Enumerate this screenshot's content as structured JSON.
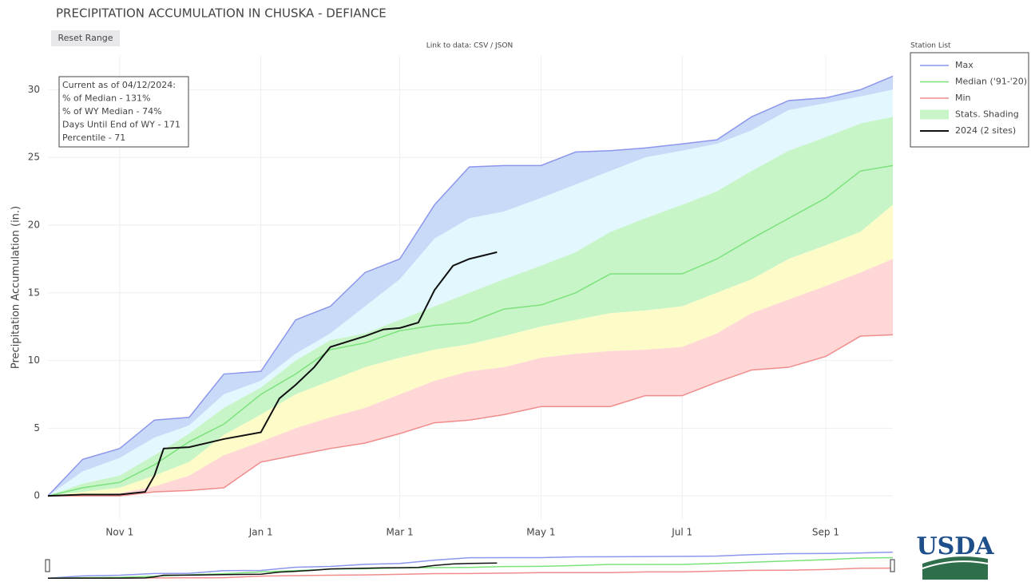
{
  "chart_data": {
    "type": "line",
    "title": "PRECIPITATION ACCUMULATION IN CHUSKA - DEFIANCE",
    "y_label": "Precipitation Accumulation (in.)",
    "reset_button": "Reset Range",
    "data_link": "Link to data: CSV / JSON",
    "legend_title": "Station List",
    "logo": "USDA",
    "info_box": [
      "Current as of 04/12/2024:",
      "% of Median - 131%",
      "% of WY Median - 74%",
      "Days Until End of WY - 171",
      "Percentile - 71"
    ],
    "xlim": [
      0,
      365
    ],
    "xticks": [
      {
        "value": 31,
        "label": "Nov 1"
      },
      {
        "value": 92,
        "label": "Jan 1"
      },
      {
        "value": 152,
        "label": "Mar 1"
      },
      {
        "value": 213,
        "label": "May 1"
      },
      {
        "value": 274,
        "label": "Jul 1"
      },
      {
        "value": 336,
        "label": "Sep 1"
      }
    ],
    "ylim": [
      -1.7,
      32.5
    ],
    "yticks": [
      0,
      5,
      10,
      15,
      20,
      25,
      30
    ],
    "grid": true,
    "legend": "right",
    "x": [
      0,
      15,
      31,
      46,
      61,
      76,
      92,
      107,
      122,
      137,
      152,
      167,
      182,
      197,
      213,
      228,
      243,
      258,
      274,
      289,
      304,
      320,
      336,
      351,
      365
    ],
    "series": [
      {
        "name": "Max",
        "color": "#8c96ec",
        "values": [
          0,
          2.7,
          3.5,
          5.6,
          5.8,
          9,
          9.2,
          13,
          14,
          16.5,
          17.5,
          21.5,
          24.3,
          24.4,
          24.4,
          25.4,
          25.5,
          25.7,
          26,
          26.3,
          28,
          29.2,
          29.4,
          30,
          31
        ]
      },
      {
        "name": "Median ('91-'20)",
        "color": "#7ce27c",
        "values": [
          0,
          0.6,
          1,
          2.3,
          4,
          5.3,
          7.5,
          9,
          10.8,
          11.3,
          12.2,
          12.6,
          12.8,
          13.8,
          14.1,
          15,
          16.4,
          16.4,
          16.4,
          17.5,
          19,
          20.5,
          22,
          24,
          24.4
        ]
      },
      {
        "name": "Min",
        "color": "#f08c8c",
        "values": [
          0,
          0,
          0,
          0.3,
          0.4,
          0.6,
          2.5,
          3,
          3.5,
          3.9,
          4.6,
          5.4,
          5.6,
          6,
          6.6,
          6.6,
          6.6,
          7.4,
          7.4,
          8.4,
          9.3,
          9.5,
          10.3,
          11.8,
          11.9
        ]
      },
      {
        "name": "2024 (2 sites)",
        "color": "#111111",
        "x": [
          0,
          15,
          31,
          42,
          46,
          50,
          61,
          76,
          92,
          100,
          107,
          115,
          122,
          137,
          145,
          152,
          160,
          167,
          175,
          182,
          194
        ],
        "values": [
          0,
          0.1,
          0.1,
          0.3,
          1.5,
          3.5,
          3.6,
          4.2,
          4.7,
          7.2,
          8.2,
          9.5,
          11,
          11.8,
          12.3,
          12.4,
          12.8,
          15.2,
          17,
          17.5,
          18
        ]
      }
    ],
    "shading": {
      "name": "Stats. Shading",
      "color": "#c8f5c8",
      "band_colors": [
        "#c9daf8",
        "#e2f7fe",
        "#c8f5c8",
        "#fdfcc8",
        "#ffd7d7"
      ],
      "levels": [
        [
          0,
          1.8,
          2.8,
          4.3,
          5.2,
          7.5,
          8.5,
          10.5,
          12,
          14,
          16,
          19,
          20.5,
          21,
          22,
          23,
          24,
          25,
          25.5,
          26,
          27,
          28.5,
          29,
          29.5,
          30
        ],
        [
          0,
          0.9,
          1.5,
          3,
          4.6,
          6.5,
          8,
          10,
          11.5,
          12,
          13,
          14,
          15,
          16,
          17,
          18,
          19.5,
          20.5,
          21.5,
          22.5,
          24,
          25.5,
          26.5,
          27.5,
          28
        ],
        [
          0,
          0.3,
          0.6,
          1.5,
          2.5,
          4.5,
          6,
          7.5,
          8.5,
          9.5,
          10.2,
          10.8,
          11.2,
          11.8,
          12.5,
          13,
          13.5,
          13.7,
          14,
          15,
          16,
          17.5,
          18.5,
          19.5,
          21.5
        ],
        [
          0,
          0.1,
          0.2,
          0.7,
          1.5,
          3,
          4,
          5,
          5.8,
          6.5,
          7.5,
          8.5,
          9.2,
          9.5,
          10.2,
          10.5,
          10.7,
          10.8,
          11,
          12,
          13.5,
          14.5,
          15.5,
          16.5,
          17.5
        ]
      ]
    }
  }
}
